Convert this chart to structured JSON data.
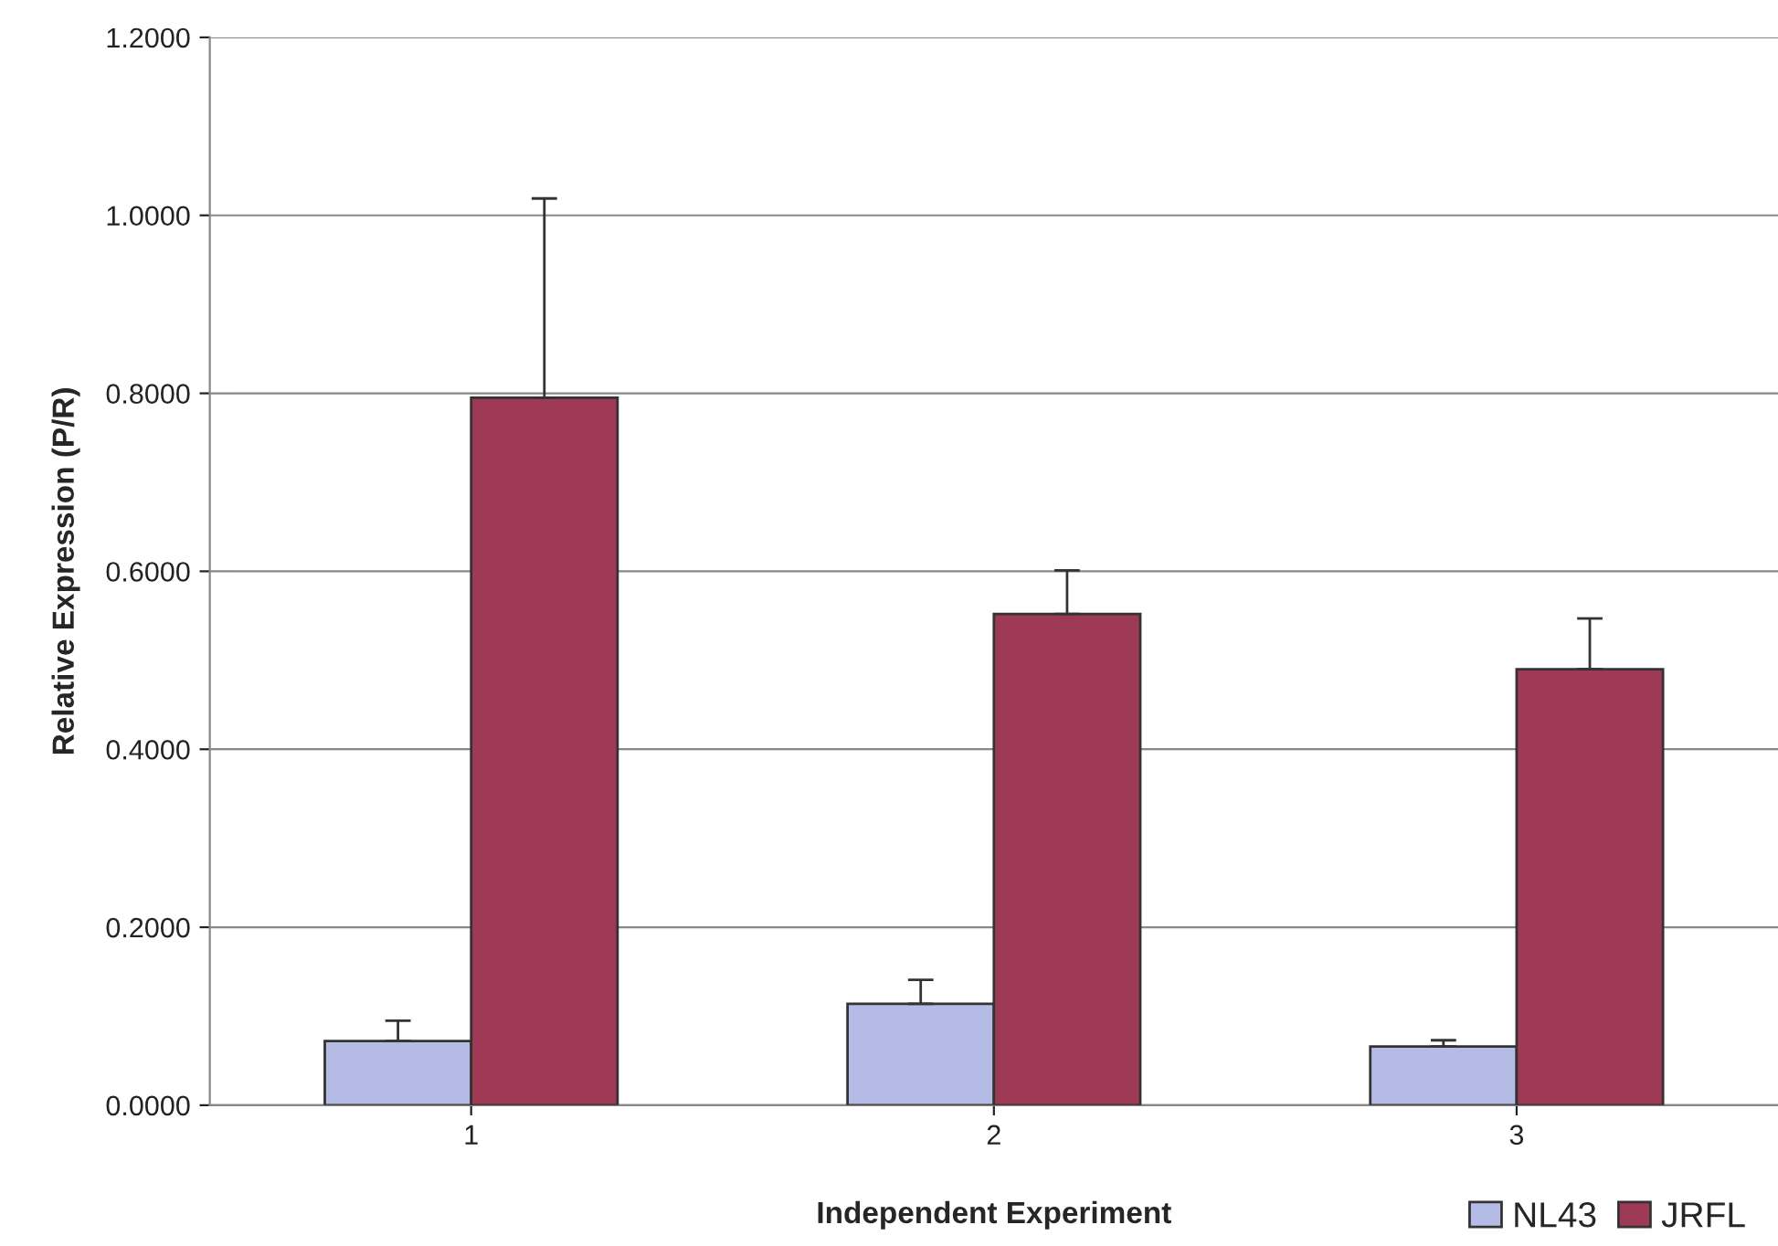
{
  "chart_data": {
    "type": "bar",
    "xlabel": "Independent Experiment",
    "ylabel": "Relative Expression (P/R)",
    "categories": [
      "1",
      "2",
      "3"
    ],
    "series": [
      {
        "name": "NL43",
        "color": "#b4bce6",
        "values": [
          0.072,
          0.114,
          0.066
        ],
        "errors": [
          [
            0.072,
            0.095
          ],
          [
            0.114,
            0.141
          ],
          [
            0.066,
            0.073
          ]
        ]
      },
      {
        "name": "JRFL",
        "color": "#9e3a55",
        "values": [
          0.795,
          0.552,
          0.49
        ],
        "errors": [
          [
            0.795,
            1.019
          ],
          [
            0.552,
            0.601
          ],
          [
            0.49,
            0.547
          ]
        ]
      }
    ],
    "ylim": [
      0,
      1.2
    ],
    "yticks": [
      {
        "value": 0,
        "label": "0.0000"
      },
      {
        "value": 0.2,
        "label": "0.2000"
      },
      {
        "value": 0.4,
        "label": "0.4000"
      },
      {
        "value": 0.6,
        "label": "0.6000"
      },
      {
        "value": 0.8,
        "label": "0.8000"
      },
      {
        "value": 1.0,
        "label": "1.0000"
      },
      {
        "value": 1.2,
        "label": "1.2000"
      }
    ],
    "grid": "y",
    "legend": "bottom right"
  }
}
